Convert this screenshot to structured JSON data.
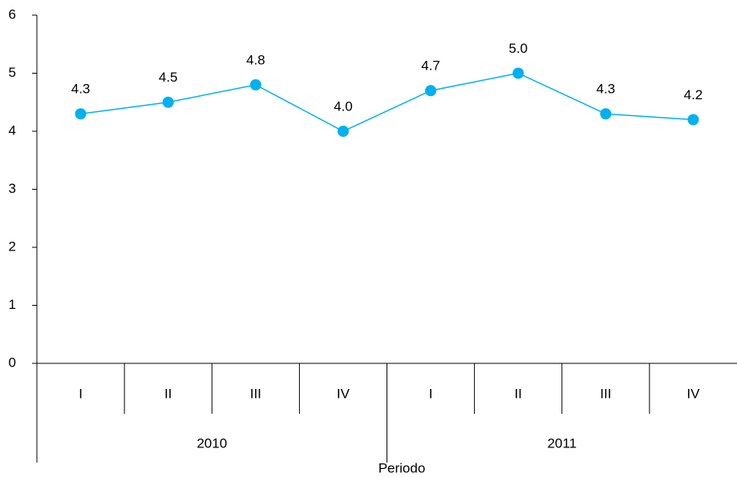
{
  "chart_data": {
    "type": "line",
    "categories": [
      "I",
      "II",
      "III",
      "IV",
      "I",
      "II",
      "III",
      "IV"
    ],
    "groups": [
      "2010",
      "2011"
    ],
    "values": [
      4.3,
      4.5,
      4.8,
      4.0,
      4.7,
      5.0,
      4.3,
      4.2
    ],
    "value_labels": [
      "4.3",
      "4.5",
      "4.8",
      "4.0",
      "4.7",
      "5.0",
      "4.3",
      "4.2"
    ],
    "color": "#00b0f0",
    "x_label": "Periodo",
    "ylim": [
      0,
      6
    ],
    "yticks": [
      0,
      1,
      2,
      3,
      4,
      5,
      6
    ],
    "grid": false
  }
}
